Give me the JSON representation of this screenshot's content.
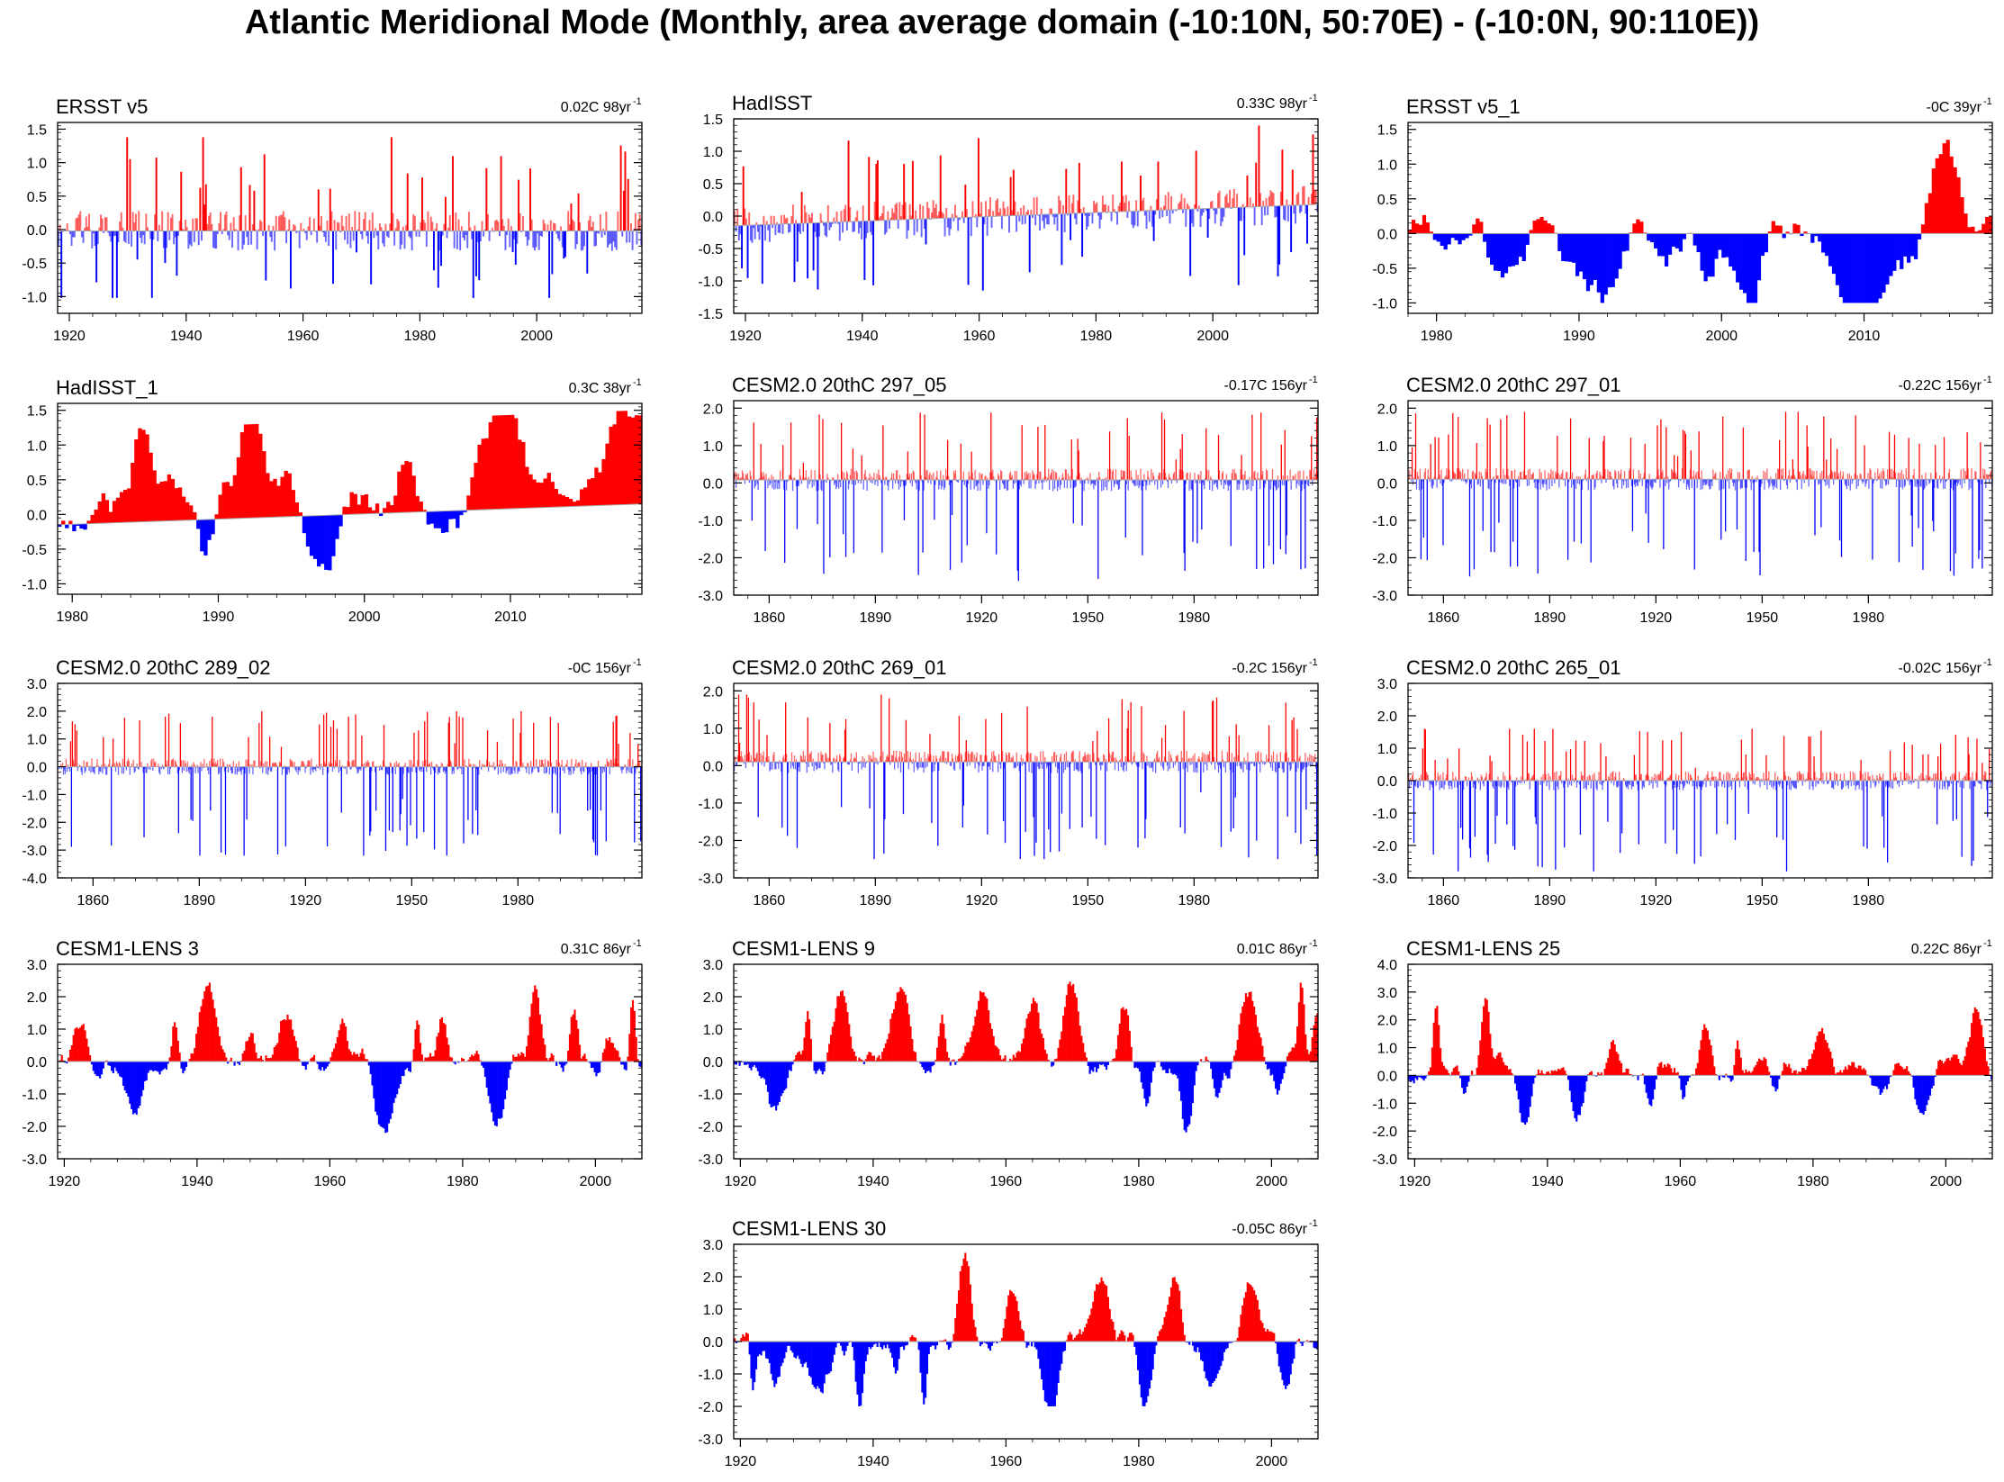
{
  "title": "Atlantic Meridional Mode (Monthly, area average domain (-10:10N, 50:70E) - (-10:0N, 90:110E))",
  "colors": {
    "positive": "#ff0000",
    "negative": "#0000ff",
    "thin": "#aaaaaa",
    "axis": "#000000"
  },
  "chart_data": [
    {
      "type": "area",
      "title": "ERSST v5",
      "stat": "0.02C 98yr",
      "stat_sup": "-1",
      "x_start": 1918,
      "x_end": 2018,
      "xticks": [
        1920,
        1940,
        1960,
        1980,
        2000
      ],
      "ylim": [
        -1.25,
        1.6
      ],
      "yticks": [
        "1.5",
        "1.0",
        "0.5",
        "0.0",
        "-0.5",
        "-1.0"
      ],
      "ref": -0.02,
      "max_amp": 1.4,
      "min_amp": -1.0,
      "style": "thin",
      "seed": 11
    },
    {
      "type": "area",
      "title": "HadISST",
      "stat": "0.33C 98yr",
      "stat_sup": "-1",
      "x_start": 1918,
      "x_end": 2018,
      "xticks": [
        1920,
        1940,
        1960,
        1980,
        2000
      ],
      "ylim": [
        -1.5,
        1.5
      ],
      "yticks": [
        "1.5",
        "1.0",
        "0.5",
        "0.0",
        "-0.5",
        "-1.0",
        "-1.5"
      ],
      "ref": -0.15,
      "ref_end": 0.18,
      "max_amp": 1.25,
      "min_amp": -1.2,
      "style": "thin",
      "seed": 12
    },
    {
      "type": "area",
      "title": "ERSST v5_1",
      "stat": "-0C 39yr",
      "stat_sup": "-1",
      "x_start": 1978,
      "x_end": 2019,
      "xticks": [
        1980,
        1990,
        2000,
        2010
      ],
      "ylim": [
        -1.15,
        1.6
      ],
      "yticks": [
        "1.5",
        "1.0",
        "0.5",
        "0.0",
        "-0.5",
        "-1.0"
      ],
      "ref": 0.0,
      "max_amp": 1.5,
      "min_amp": -1.0,
      "style": "smooth",
      "seed": 13
    },
    {
      "type": "area",
      "title": "HadISST_1",
      "stat": "0.3C 38yr",
      "stat_sup": "-1",
      "x_start": 1979,
      "x_end": 2019,
      "xticks": [
        1980,
        1990,
        2000,
        2010
      ],
      "ylim": [
        -1.15,
        1.6
      ],
      "yticks": [
        "1.5",
        "1.0",
        "0.5",
        "0.0",
        "-0.5",
        "-1.0"
      ],
      "ref": -0.15,
      "ref_end": 0.15,
      "max_amp": 1.35,
      "min_amp": -0.95,
      "style": "smooth",
      "seed": 14
    },
    {
      "type": "area",
      "title": "CESM2.0 20thC 297_05",
      "stat": "-0.17C 156yr",
      "stat_sup": "-1",
      "x_start": 1850,
      "x_end": 2015,
      "xticks": [
        1860,
        1890,
        1920,
        1950,
        1980
      ],
      "ylim": [
        -3.0,
        2.2
      ],
      "yticks": [
        "2.0",
        "1.0",
        "0.0",
        "-1.0",
        "-2.0",
        "-3.0"
      ],
      "ref": 0.08,
      "max_amp": 1.8,
      "min_amp": -2.7,
      "style": "thin",
      "seed": 21
    },
    {
      "type": "area",
      "title": "CESM2.0 20thC 297_01",
      "stat": "-0.22C 156yr",
      "stat_sup": "-1",
      "x_start": 1850,
      "x_end": 2015,
      "xticks": [
        1860,
        1890,
        1920,
        1950,
        1980
      ],
      "ylim": [
        -3.0,
        2.2
      ],
      "yticks": [
        "2.0",
        "1.0",
        "0.0",
        "-1.0",
        "-2.0",
        "-3.0"
      ],
      "ref": 0.1,
      "max_amp": 1.8,
      "min_amp": -2.6,
      "style": "thin",
      "seed": 22
    },
    {
      "type": "area",
      "title": "CESM2.0 20thC 289_02",
      "stat": "-0C 156yr",
      "stat_sup": "-1",
      "x_start": 1850,
      "x_end": 2015,
      "xticks": [
        1860,
        1890,
        1920,
        1950,
        1980
      ],
      "ylim": [
        -4.0,
        3.0
      ],
      "yticks": [
        "3.0",
        "2.0",
        "1.0",
        "0.0",
        "-1.0",
        "-2.0",
        "-3.0",
        "-4.0"
      ],
      "ref": 0.0,
      "max_amp": 2.0,
      "min_amp": -3.2,
      "style": "thin",
      "seed": 23
    },
    {
      "type": "area",
      "title": "CESM2.0 20thC 269_01",
      "stat": "-0.2C 156yr",
      "stat_sup": "-1",
      "x_start": 1850,
      "x_end": 2015,
      "xticks": [
        1860,
        1890,
        1920,
        1950,
        1980
      ],
      "ylim": [
        -3.0,
        2.2
      ],
      "yticks": [
        "2.0",
        "1.0",
        "0.0",
        "-1.0",
        "-2.0",
        "-3.0"
      ],
      "ref": 0.1,
      "max_amp": 1.8,
      "min_amp": -2.6,
      "style": "thin",
      "seed": 24
    },
    {
      "type": "area",
      "title": "CESM2.0 20thC 265_01",
      "stat": "-0.02C 156yr",
      "stat_sup": "-1",
      "x_start": 1850,
      "x_end": 2015,
      "xticks": [
        1860,
        1890,
        1920,
        1950,
        1980
      ],
      "ylim": [
        -3.0,
        3.0
      ],
      "yticks": [
        "3.0",
        "2.0",
        "1.0",
        "0.0",
        "-1.0",
        "-2.0",
        "-3.0"
      ],
      "ref": 0.0,
      "max_amp": 1.6,
      "min_amp": -2.8,
      "style": "thin",
      "seed": 25
    },
    {
      "type": "area",
      "title": "CESM1-LENS 3",
      "stat": "0.31C 86yr",
      "stat_sup": "-1",
      "x_start": 1919,
      "x_end": 2007,
      "xticks": [
        1920,
        1940,
        1960,
        1980,
        2000
      ],
      "ylim": [
        -3.0,
        3.0
      ],
      "yticks": [
        "3.0",
        "2.0",
        "1.0",
        "0.0",
        "-1.0",
        "-2.0",
        "-3.0"
      ],
      "ref": 0.0,
      "max_amp": 2.6,
      "min_amp": -2.2,
      "style": "smooth",
      "seed": 31
    },
    {
      "type": "area",
      "title": "CESM1-LENS 9",
      "stat": "0.01C 86yr",
      "stat_sup": "-1",
      "x_start": 1919,
      "x_end": 2007,
      "xticks": [
        1920,
        1940,
        1960,
        1980,
        2000
      ],
      "ylim": [
        -3.0,
        3.0
      ],
      "yticks": [
        "3.0",
        "2.0",
        "1.0",
        "0.0",
        "-1.0",
        "-2.0",
        "-3.0"
      ],
      "ref": 0.0,
      "max_amp": 2.5,
      "min_amp": -2.2,
      "style": "smooth",
      "seed": 32
    },
    {
      "type": "area",
      "title": "CESM1-LENS 25",
      "stat": "0.22C 86yr",
      "stat_sup": "-1",
      "x_start": 1919,
      "x_end": 2007,
      "xticks": [
        1920,
        1940,
        1960,
        1980,
        2000
      ],
      "ylim": [
        -3.0,
        4.0
      ],
      "yticks": [
        "4.0",
        "3.0",
        "2.0",
        "1.0",
        "0.0",
        "-1.0",
        "-2.0",
        "-3.0"
      ],
      "ref": 0.0,
      "max_amp": 2.8,
      "min_amp": -2.2,
      "style": "smooth",
      "seed": 33
    },
    {
      "type": "area",
      "title": "CESM1-LENS 30",
      "stat": "-0.05C 86yr",
      "stat_sup": "-1",
      "x_start": 1919,
      "x_end": 2007,
      "xticks": [
        1920,
        1940,
        1960,
        1980,
        2000
      ],
      "ylim": [
        -3.0,
        3.0
      ],
      "yticks": [
        "3.0",
        "2.0",
        "1.0",
        "0.0",
        "-1.0",
        "-2.0",
        "-3.0"
      ],
      "ref": 0.0,
      "max_amp": 2.8,
      "min_amp": -2.0,
      "style": "smooth",
      "seed": 34
    }
  ]
}
